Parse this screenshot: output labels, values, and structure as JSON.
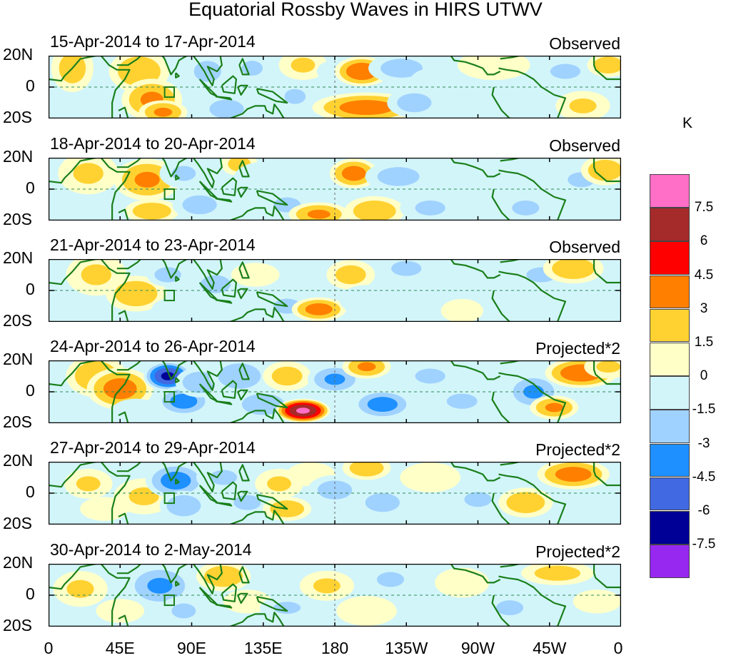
{
  "title": "Equatorial Rossby Waves in HIRS UTWV",
  "latitude_labels": [
    "20N",
    "0",
    "20S"
  ],
  "longitude_labels": [
    "0",
    "45E",
    "90E",
    "135E",
    "180",
    "135W",
    "90W",
    "45W",
    "0"
  ],
  "panels": [
    {
      "dates": "15-Apr-2014 to 17-Apr-2014",
      "kind": "Observed"
    },
    {
      "dates": "18-Apr-2014 to 20-Apr-2014",
      "kind": "Observed"
    },
    {
      "dates": "21-Apr-2014 to 23-Apr-2014",
      "kind": "Observed"
    },
    {
      "dates": "24-Apr-2014 to 26-Apr-2014",
      "kind": "Projected*2"
    },
    {
      "dates": "27-Apr-2014 to 29-Apr-2014",
      "kind": "Projected*2"
    },
    {
      "dates": "30-Apr-2014 to 2-May-2014",
      "kind": "Projected*2"
    }
  ],
  "colorbar": {
    "unit": "K",
    "labels": [
      "7.5",
      "6",
      "4.5",
      "3",
      "1.5",
      "0",
      "-1.5",
      "-3",
      "-4.5",
      "-6",
      "-7.5"
    ],
    "colors": [
      "#ff6ec7",
      "#a52a2a",
      "#ff0000",
      "#ff7f00",
      "#ffd232",
      "#ffffc8",
      "#d2f5fa",
      "#a0d2ff",
      "#1e90ff",
      "#4169e1",
      "#000096",
      "#9628f0"
    ]
  },
  "chart_data": {
    "type": "heatmap",
    "title": "Equatorial Rossby Waves in HIRS UTWV",
    "variable": "HIRS UTWV anomaly",
    "unit": "K",
    "levels": [
      -7.5,
      -6,
      -4.5,
      -3,
      -1.5,
      0,
      1.5,
      3,
      4.5,
      6,
      7.5
    ],
    "lat_range": [
      -20,
      20
    ],
    "lon_range": [
      0,
      360
    ],
    "panels": [
      {
        "dates": "15-Apr-2014 to 17-Apr-2014",
        "kind": "Observed",
        "blobs": [
          [
            15,
            12,
            7,
            8,
            2.5
          ],
          [
            57,
            10,
            10,
            7,
            3
          ],
          [
            65,
            -8,
            10,
            7,
            3.5
          ],
          [
            72,
            -16,
            8,
            4,
            3.5
          ],
          [
            100,
            10,
            9,
            7,
            -2
          ],
          [
            112,
            -14,
            9,
            5,
            -2.5
          ],
          [
            128,
            12,
            7,
            5,
            -2
          ],
          [
            155,
            -6,
            7,
            5,
            -2
          ],
          [
            160,
            14,
            8,
            5,
            2
          ],
          [
            182,
            10,
            7,
            4,
            -1.5
          ],
          [
            197,
            10,
            9,
            5,
            4.5
          ],
          [
            200,
            -13,
            18,
            5,
            4
          ],
          [
            222,
            12,
            11,
            5,
            -2.5
          ],
          [
            230,
            -10,
            9,
            5,
            -2.5
          ],
          [
            250,
            4,
            12,
            5,
            -1.5
          ],
          [
            280,
            14,
            12,
            5,
            1.5
          ],
          [
            280,
            -14,
            10,
            5,
            -1.5
          ],
          [
            325,
            10,
            10,
            5,
            -2
          ],
          [
            336,
            -12,
            9,
            5,
            2
          ],
          [
            352,
            14,
            7,
            4,
            3
          ]
        ]
      },
      {
        "dates": "18-Apr-2014 to 20-Apr-2014",
        "kind": "Observed",
        "blobs": [
          [
            25,
            10,
            10,
            7,
            2
          ],
          [
            62,
            6,
            11,
            7,
            3.5
          ],
          [
            65,
            -14,
            9,
            4,
            3
          ],
          [
            85,
            10,
            8,
            5,
            -2
          ],
          [
            95,
            -10,
            9,
            5,
            -2.5
          ],
          [
            120,
            16,
            6,
            4,
            2.5
          ],
          [
            135,
            6,
            10,
            6,
            -1.5
          ],
          [
            150,
            -10,
            9,
            5,
            -2
          ],
          [
            170,
            -16,
            10,
            4,
            3.5
          ],
          [
            192,
            10,
            8,
            5,
            4
          ],
          [
            205,
            -14,
            10,
            5,
            3
          ],
          [
            220,
            8,
            11,
            5,
            -2.5
          ],
          [
            240,
            -12,
            10,
            5,
            -2
          ],
          [
            260,
            10,
            11,
            5,
            -1.5
          ],
          [
            300,
            -12,
            9,
            5,
            -2
          ],
          [
            335,
            6,
            9,
            5,
            -2
          ],
          [
            350,
            12,
            8,
            5,
            3
          ]
        ]
      },
      {
        "dates": "21-Apr-2014 to 23-Apr-2014",
        "kind": "Observed",
        "blobs": [
          [
            30,
            10,
            10,
            7,
            2
          ],
          [
            55,
            -2,
            10,
            6,
            3
          ],
          [
            75,
            10,
            7,
            4,
            -2.5
          ],
          [
            80,
            -12,
            8,
            4,
            -1.5
          ],
          [
            105,
            4,
            10,
            6,
            -2
          ],
          [
            130,
            10,
            8,
            4,
            1.5
          ],
          [
            150,
            -10,
            9,
            5,
            -2
          ],
          [
            170,
            -12,
            9,
            4,
            4
          ],
          [
            190,
            10,
            8,
            5,
            2.5
          ],
          [
            200,
            -6,
            9,
            5,
            -1.5
          ],
          [
            225,
            14,
            10,
            5,
            -2
          ],
          [
            250,
            -4,
            12,
            5,
            -1.5
          ],
          [
            260,
            -13,
            7,
            4,
            1.5
          ],
          [
            310,
            10,
            10,
            5,
            -2
          ],
          [
            330,
            14,
            10,
            5,
            3
          ],
          [
            345,
            -6,
            8,
            4,
            -1.5
          ]
        ]
      },
      {
        "dates": "24-Apr-2014 to 26-Apr-2014",
        "kind": "Projected*2",
        "blobs": [
          [
            30,
            10,
            10,
            7,
            3
          ],
          [
            45,
            2,
            11,
            7,
            4
          ],
          [
            55,
            -12,
            8,
            4,
            -1.5
          ],
          [
            75,
            10,
            8,
            5,
            -6.5
          ],
          [
            85,
            -6,
            9,
            5,
            -4
          ],
          [
            95,
            6,
            8,
            5,
            -3
          ],
          [
            120,
            10,
            10,
            6,
            -3
          ],
          [
            135,
            -8,
            10,
            5,
            -3
          ],
          [
            150,
            10,
            8,
            5,
            2.5
          ],
          [
            160,
            -12,
            9,
            4,
            8
          ],
          [
            180,
            8,
            9,
            5,
            -3.5
          ],
          [
            200,
            16,
            8,
            4,
            3.5
          ],
          [
            210,
            -8,
            10,
            5,
            -4
          ],
          [
            240,
            10,
            10,
            5,
            -2
          ],
          [
            260,
            -6,
            8,
            4,
            -2.5
          ],
          [
            305,
            0,
            9,
            6,
            -3.5
          ],
          [
            318,
            -10,
            8,
            4,
            3.5
          ],
          [
            335,
            12,
            12,
            5,
            4.5
          ],
          [
            352,
            16,
            8,
            4,
            2
          ]
        ]
      },
      {
        "dates": "27-Apr-2014 to 29-Apr-2014",
        "kind": "Projected*2",
        "blobs": [
          [
            25,
            6,
            8,
            5,
            2
          ],
          [
            35,
            -10,
            8,
            4,
            1.5
          ],
          [
            60,
            -2,
            10,
            6,
            2
          ],
          [
            80,
            8,
            10,
            6,
            -4
          ],
          [
            85,
            -8,
            8,
            5,
            -3
          ],
          [
            110,
            10,
            9,
            5,
            -2
          ],
          [
            125,
            -6,
            9,
            5,
            -2
          ],
          [
            145,
            6,
            8,
            5,
            2
          ],
          [
            150,
            -10,
            8,
            4,
            3
          ],
          [
            165,
            12,
            8,
            4,
            1.5
          ],
          [
            180,
            2,
            9,
            5,
            -2.5
          ],
          [
            200,
            16,
            8,
            4,
            3
          ],
          [
            210,
            -6,
            9,
            5,
            -2.5
          ],
          [
            240,
            10,
            10,
            5,
            1.5
          ],
          [
            270,
            -4,
            9,
            5,
            -2
          ],
          [
            300,
            -6,
            9,
            5,
            3
          ],
          [
            330,
            12,
            12,
            5,
            4
          ],
          [
            345,
            -10,
            8,
            4,
            -1.5
          ]
        ]
      },
      {
        "dates": "30-Apr-2014 to 2-May-2014",
        "kind": "Projected*2",
        "blobs": [
          [
            20,
            4,
            9,
            6,
            2
          ],
          [
            45,
            -10,
            8,
            4,
            1.5
          ],
          [
            70,
            6,
            11,
            7,
            -3.5
          ],
          [
            85,
            -10,
            8,
            5,
            -2
          ],
          [
            110,
            12,
            9,
            5,
            3
          ],
          [
            125,
            -4,
            8,
            4,
            1.5
          ],
          [
            150,
            -8,
            9,
            4,
            -2
          ],
          [
            175,
            6,
            9,
            5,
            2
          ],
          [
            200,
            -10,
            10,
            5,
            1.5
          ],
          [
            215,
            10,
            9,
            5,
            -2
          ],
          [
            235,
            -6,
            9,
            5,
            -1.5
          ],
          [
            260,
            8,
            9,
            5,
            1.5
          ],
          [
            290,
            -8,
            9,
            5,
            -2
          ],
          [
            320,
            14,
            12,
            4,
            2.5
          ],
          [
            345,
            -4,
            8,
            4,
            1.5
          ]
        ]
      }
    ]
  }
}
